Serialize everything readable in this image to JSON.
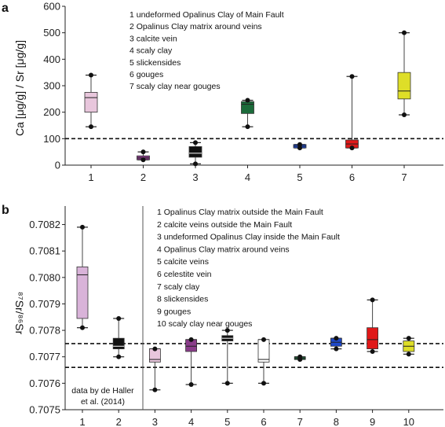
{
  "chart_data": [
    {
      "panel": "a",
      "type": "boxplot",
      "ylabel": "Ca [μg/g] / Sr [μg/g]",
      "ylim": [
        0,
        600
      ],
      "yticks": [
        "0",
        "100",
        "200",
        "300",
        "400",
        "500",
        "600"
      ],
      "categories": [
        "1",
        "2",
        "3",
        "4",
        "5",
        "6",
        "7"
      ],
      "reference_lines": [
        100
      ],
      "grid": false,
      "legend": [
        "1   undeformed Opalinus Clay of Main Fault",
        "2   Opalinus Clay matrix around veins",
        "3   calcite vein",
        "4   scaly clay",
        "5   slickensides",
        "6   gouges",
        "7   scaly clay near gouges"
      ],
      "series": [
        {
          "category": "1",
          "color": "#e8c6dc",
          "min": 145,
          "q1": 200,
          "median": 255,
          "q3": 275,
          "max": 340,
          "outliers": []
        },
        {
          "category": "2",
          "color": "#8a3d8a",
          "min": 20,
          "q1": 20,
          "median": 27,
          "q3": 35,
          "max": 50,
          "outliers": []
        },
        {
          "category": "3",
          "color": "#111111",
          "min": 5,
          "q1": 30,
          "median": 45,
          "q3": 70,
          "max": 85,
          "outliers": []
        },
        {
          "category": "4",
          "color": "#1b6b3a",
          "min": 145,
          "q1": 195,
          "median": 230,
          "q3": 240,
          "max": 245,
          "outliers": []
        },
        {
          "category": "5",
          "color": "#1d48c8",
          "min": 65,
          "q1": 65,
          "median": 72,
          "q3": 78,
          "max": 78,
          "outliers": []
        },
        {
          "category": "6",
          "color": "#e01818",
          "min": 65,
          "q1": 65,
          "median": 80,
          "q3": 95,
          "max": 335,
          "outliers": []
        },
        {
          "category": "7",
          "color": "#dede28",
          "min": 190,
          "q1": 250,
          "median": 280,
          "q3": 350,
          "max": 500,
          "outliers": []
        }
      ]
    },
    {
      "panel": "b",
      "type": "boxplot",
      "ylabel": "⁸⁷Sr/⁸⁶Sr",
      "ylim": [
        0.7075,
        0.70827
      ],
      "yticks": [
        "0.7075",
        "0.7076",
        "0.7077",
        "0.7078",
        "0.7079",
        "0.7080",
        "0.7081",
        "0.7082"
      ],
      "categories": [
        "1",
        "2",
        "3",
        "4",
        "5",
        "6",
        "7",
        "8",
        "9",
        "10"
      ],
      "reference_lines": [
        0.70775,
        0.70766
      ],
      "grid": false,
      "note": "data by de Haller\net al. (2014)",
      "legend": [
        "1   Opalinus Clay matrix outside the Main Fault",
        "2   calcite veins outside the Main Fault",
        "3   undeformed Opalinus Clay inside the Main Fault",
        "4   Opalinus Clay matrix around veins",
        "5   calcite veins",
        "6   celestite vein",
        "7   scaly clay",
        "8   slickensides",
        "9   gouges",
        "10 scaly clay near gouges"
      ],
      "series": [
        {
          "category": "1",
          "color": "#d9b3d9",
          "min": 0.70781,
          "q1": 0.707845,
          "median": 0.70801,
          "q3": 0.70804,
          "max": 0.70819
        },
        {
          "category": "2",
          "color": "#111111",
          "min": 0.7077,
          "q1": 0.70773,
          "median": 0.70774,
          "q3": 0.70777,
          "max": 0.707845
        },
        {
          "category": "3",
          "color": "#e8c6dc",
          "min": 0.707575,
          "q1": 0.70768,
          "median": 0.70769,
          "q3": 0.70773,
          "max": 0.70773
        },
        {
          "category": "4",
          "color": "#8a3d8a",
          "min": 0.707595,
          "q1": 0.70772,
          "median": 0.70774,
          "q3": 0.707765,
          "max": 0.707765
        },
        {
          "category": "5",
          "color": "#111111",
          "min": 0.7076,
          "q1": 0.70776,
          "median": 0.70777,
          "q3": 0.70778,
          "max": 0.7078
        },
        {
          "category": "6",
          "color": "#ffffff",
          "min": 0.7076,
          "q1": 0.70768,
          "median": 0.70769,
          "q3": 0.707765,
          "max": 0.707765
        },
        {
          "category": "7",
          "color": "#1b6b3a",
          "min": 0.70769,
          "q1": 0.70769,
          "median": 0.707695,
          "q3": 0.7077,
          "max": 0.7077
        },
        {
          "category": "8",
          "color": "#1d48c8",
          "min": 0.70773,
          "q1": 0.70774,
          "median": 0.707755,
          "q3": 0.70777,
          "max": 0.70777
        },
        {
          "category": "9",
          "color": "#e01818",
          "min": 0.70772,
          "q1": 0.70773,
          "median": 0.707765,
          "q3": 0.70781,
          "max": 0.707915
        },
        {
          "category": "10",
          "color": "#dede28",
          "min": 0.70771,
          "q1": 0.70772,
          "median": 0.70774,
          "q3": 0.70776,
          "max": 0.70777
        }
      ]
    }
  ]
}
